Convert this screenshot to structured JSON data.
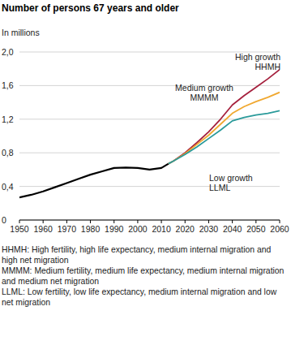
{
  "chart_data": {
    "type": "line",
    "title": "Number of persons 67 years and older",
    "y_label": "In millions",
    "x": [
      1950,
      1955,
      1960,
      1965,
      1970,
      1975,
      1980,
      1985,
      1990,
      1995,
      2000,
      2005,
      2010,
      2013,
      2015,
      2020,
      2025,
      2030,
      2035,
      2040,
      2045,
      2050,
      2055,
      2060
    ],
    "series": [
      {
        "color": "#000000",
        "values": [
          0.27,
          0.3,
          0.34,
          0.39,
          0.44,
          0.49,
          0.54,
          0.58,
          0.62,
          0.625,
          0.62,
          0.6,
          0.62,
          0.67,
          null,
          null,
          null,
          null,
          null,
          null,
          null,
          null,
          null,
          null
        ]
      },
      {
        "name": "High growth HHMH",
        "color": "#a5203d",
        "values": [
          null,
          null,
          null,
          null,
          null,
          null,
          null,
          null,
          null,
          null,
          null,
          null,
          null,
          0.67,
          0.7,
          0.8,
          0.92,
          1.05,
          1.2,
          1.37,
          1.48,
          1.58,
          1.68,
          1.79
        ]
      },
      {
        "name": "Medium growth MMMM",
        "color": "#f0a830",
        "values": [
          null,
          null,
          null,
          null,
          null,
          null,
          null,
          null,
          null,
          null,
          null,
          null,
          null,
          0.67,
          0.7,
          0.79,
          0.9,
          1.01,
          1.14,
          1.27,
          1.35,
          1.41,
          1.46,
          1.52
        ]
      },
      {
        "name": "Low growth LLML",
        "color": "#2a9a9a",
        "values": [
          null,
          null,
          null,
          null,
          null,
          null,
          null,
          null,
          null,
          null,
          null,
          null,
          null,
          0.67,
          0.7,
          0.78,
          0.87,
          0.97,
          1.07,
          1.18,
          1.22,
          1.25,
          1.27,
          1.3
        ]
      }
    ],
    "xlim": [
      1950,
      2060
    ],
    "xticks": [
      1950,
      1960,
      1970,
      1980,
      1990,
      2000,
      2010,
      2020,
      2030,
      2040,
      2050,
      2060
    ],
    "ylim": [
      0,
      2
    ],
    "yticks": [
      0,
      {
        "value": 0.4,
        "label": "0,4"
      },
      {
        "value": 0.8,
        "label": "0,8"
      },
      {
        "value": 1.2,
        "label": "1,2"
      },
      {
        "value": 1.6,
        "label": "1,6"
      },
      {
        "value": 2,
        "label": "2,0"
      }
    ],
    "grid": true,
    "notes": [
      "HHMH: High fertility, high life expectancy, medium internal migration and high net migration",
      "MMMM: Medium fertility, medium life expectancy, medium internal migration and medium net migration",
      "LLML: Low fertility, low life expectancy, medium internal migration and low net migration"
    ]
  }
}
